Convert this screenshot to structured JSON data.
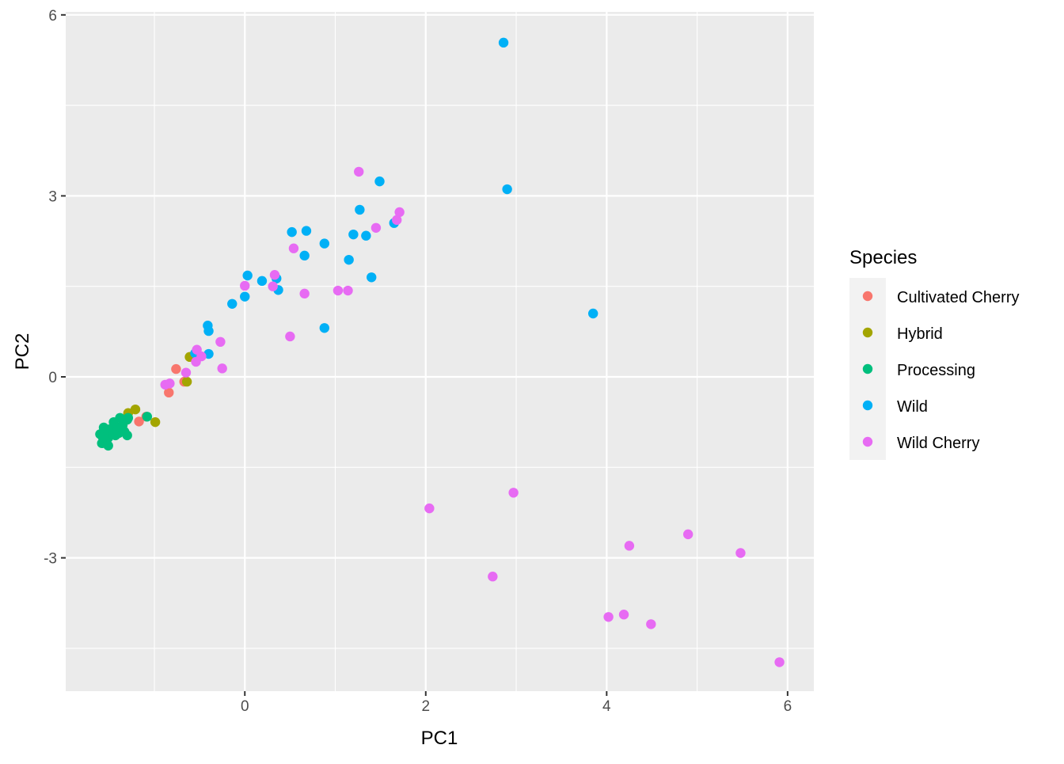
{
  "chart_data": {
    "type": "scatter",
    "xlabel": "PC1",
    "ylabel": "PC2",
    "xlim": [
      -1.98,
      6.29
    ],
    "ylim": [
      -5.21,
      6.05
    ],
    "x_ticks": [
      0,
      2,
      4,
      6
    ],
    "y_ticks": [
      -3,
      0,
      3,
      6
    ],
    "x_minor": [
      -1,
      1,
      3,
      5
    ],
    "y_minor": [
      -4.5,
      -1.5,
      1.5,
      4.5
    ],
    "grid": true,
    "legend": {
      "title": "Species",
      "position": "right"
    },
    "series": [
      {
        "name": "Cultivated Cherry",
        "color": "#F8766D",
        "points": [
          [
            -0.76,
            0.13
          ],
          [
            -0.67,
            -0.08
          ],
          [
            -0.84,
            -0.26
          ],
          [
            -1.09,
            -0.66
          ],
          [
            -1.17,
            -0.74
          ]
        ]
      },
      {
        "name": "Hybrid",
        "color": "#A3A500",
        "points": [
          [
            -0.61,
            0.33
          ],
          [
            -0.64,
            -0.08
          ],
          [
            -1.29,
            -0.6
          ],
          [
            -1.21,
            -0.54
          ],
          [
            -0.99,
            -0.75
          ]
        ]
      },
      {
        "name": "Processing",
        "color": "#00BF7D",
        "points": [
          [
            -1.6,
            -0.95
          ],
          [
            -1.56,
            -0.84
          ],
          [
            -1.51,
            -1.01
          ],
          [
            -1.51,
            -1.14
          ],
          [
            -1.54,
            -1.05
          ],
          [
            -1.45,
            -0.75
          ],
          [
            -1.41,
            -0.84
          ],
          [
            -1.39,
            -0.93
          ],
          [
            -1.35,
            -0.8
          ],
          [
            -1.3,
            -0.71
          ],
          [
            -1.3,
            -0.97
          ],
          [
            -1.33,
            -0.91
          ],
          [
            -1.48,
            -0.92
          ],
          [
            -1.43,
            -0.97
          ],
          [
            -1.5,
            -0.87
          ],
          [
            -1.38,
            -0.68
          ],
          [
            -1.08,
            -0.66
          ],
          [
            -1.29,
            -0.68
          ],
          [
            -1.54,
            -0.92
          ],
          [
            -1.58,
            -1.1
          ],
          [
            -1.46,
            -0.95
          ],
          [
            -1.41,
            -0.89
          ],
          [
            -1.37,
            -0.84
          ],
          [
            -1.57,
            -1.0
          ]
        ]
      },
      {
        "name": "Wild",
        "color": "#00B0F6",
        "points": [
          [
            2.86,
            5.54
          ],
          [
            2.9,
            3.11
          ],
          [
            3.85,
            1.05
          ],
          [
            1.49,
            3.24
          ],
          [
            1.27,
            2.77
          ],
          [
            1.65,
            2.55
          ],
          [
            1.2,
            2.36
          ],
          [
            1.34,
            2.34
          ],
          [
            0.52,
            2.4
          ],
          [
            0.68,
            2.42
          ],
          [
            0.88,
            2.21
          ],
          [
            0.66,
            2.01
          ],
          [
            1.15,
            1.94
          ],
          [
            1.4,
            1.65
          ],
          [
            0.03,
            1.68
          ],
          [
            0.19,
            1.59
          ],
          [
            0.35,
            1.63
          ],
          [
            0.37,
            1.44
          ],
          [
            0.0,
            1.33
          ],
          [
            -0.14,
            1.21
          ],
          [
            0.88,
            0.81
          ],
          [
            -0.41,
            0.85
          ],
          [
            -0.4,
            0.76
          ],
          [
            -0.4,
            0.38
          ],
          [
            -0.55,
            0.39
          ]
        ]
      },
      {
        "name": "Wild Cherry",
        "color": "#E76BF3",
        "points": [
          [
            1.26,
            3.4
          ],
          [
            1.71,
            2.73
          ],
          [
            1.68,
            2.6
          ],
          [
            1.45,
            2.47
          ],
          [
            0.54,
            2.13
          ],
          [
            0.33,
            1.69
          ],
          [
            0.31,
            1.5
          ],
          [
            0.0,
            1.51
          ],
          [
            0.66,
            1.38
          ],
          [
            1.03,
            1.43
          ],
          [
            1.14,
            1.43
          ],
          [
            0.5,
            0.67
          ],
          [
            -0.27,
            0.58
          ],
          [
            -0.25,
            0.14
          ],
          [
            -0.53,
            0.45
          ],
          [
            -0.48,
            0.34
          ],
          [
            -0.54,
            0.25
          ],
          [
            -0.65,
            0.07
          ],
          [
            -0.88,
            -0.13
          ],
          [
            -0.83,
            -0.11
          ],
          [
            2.04,
            -2.18
          ],
          [
            2.97,
            -1.92
          ],
          [
            2.74,
            -3.31
          ],
          [
            4.25,
            -2.8
          ],
          [
            4.9,
            -2.61
          ],
          [
            5.48,
            -2.92
          ],
          [
            4.02,
            -3.98
          ],
          [
            4.19,
            -3.94
          ],
          [
            4.49,
            -4.1
          ],
          [
            5.91,
            -4.73
          ]
        ]
      }
    ]
  }
}
